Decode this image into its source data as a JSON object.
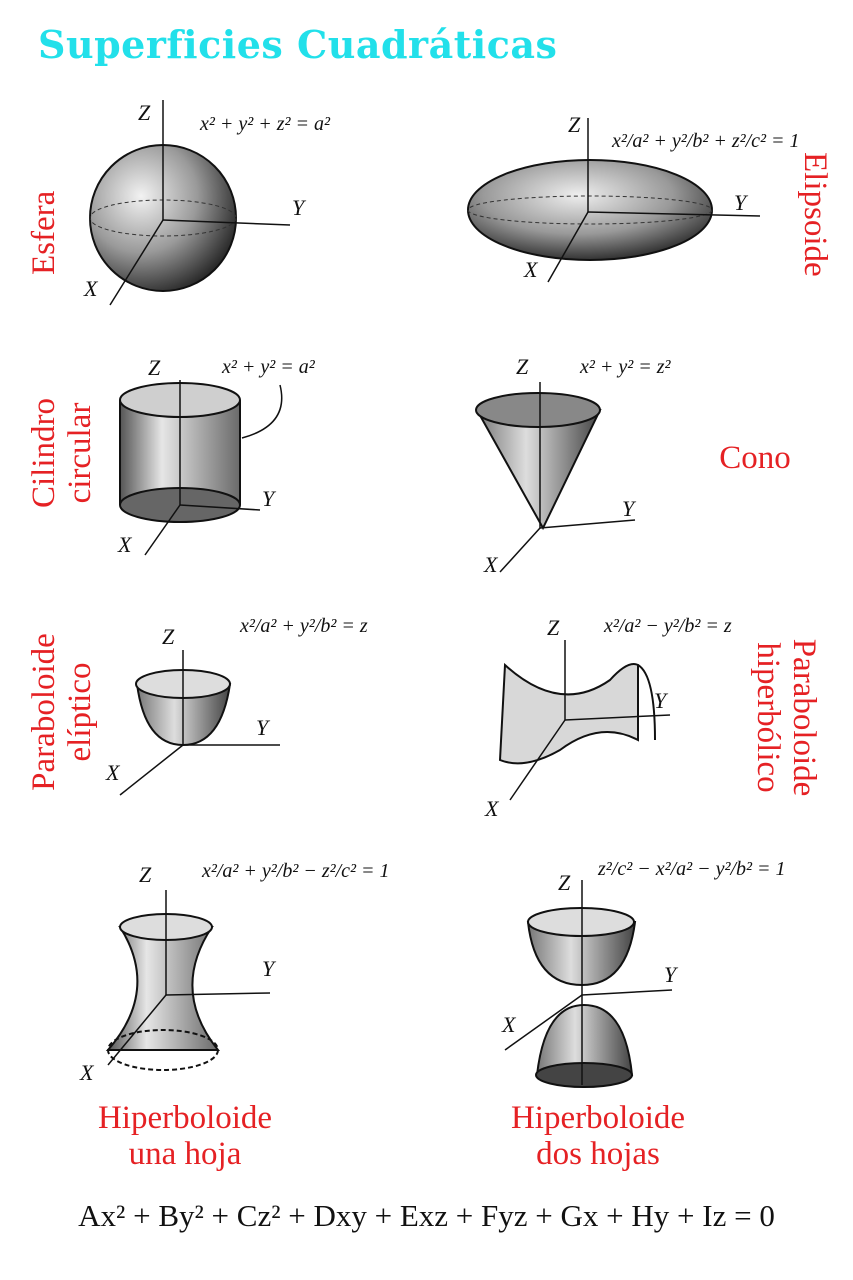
{
  "title": "Superficies Cuadráticas",
  "colors": {
    "title": "#22e0ea",
    "labels": "#e52124"
  },
  "axis_labels": {
    "x": "X",
    "y": "Y",
    "z": "Z"
  },
  "surfaces": [
    {
      "name": "Esfera",
      "equation": "x² + y² + z² = a²"
    },
    {
      "name": "Elipsoide",
      "equation": "x²/a² + y²/b² + z²/c² = 1"
    },
    {
      "name_line1": "Cilindro",
      "name_line2": "circular",
      "equation": "x² + y² = a²"
    },
    {
      "name": "Cono",
      "equation": "x² + y² = z²"
    },
    {
      "name_line1": "Paraboloide",
      "name_line2": "elíptico",
      "equation": "x²/a² + y²/b² = z"
    },
    {
      "name_line1": "Paraboloide",
      "name_line2": "hiperbólico",
      "equation": "x²/a² − y²/b² = z"
    },
    {
      "name_line1": "Hiperboloide",
      "name_line2": "una hoja",
      "equation": "x²/a² + y²/b² − z²/c² = 1"
    },
    {
      "name_line1": "Hiperboloide",
      "name_line2": "dos hojas",
      "equation": "z²/c² − x²/a² − y²/b² = 1"
    }
  ],
  "general_equation": "Ax² + By² + Cz² + Dxy + Exz + Fyz + Gx + Hy + Iz = 0"
}
